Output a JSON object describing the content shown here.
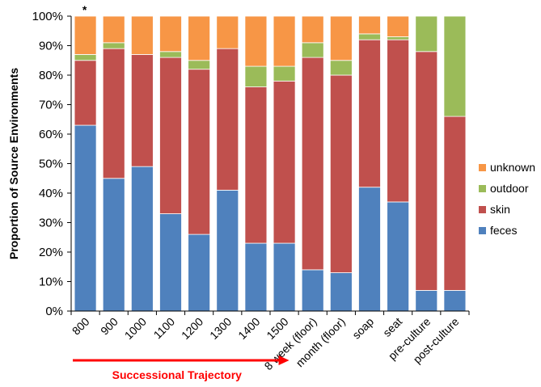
{
  "chart_data": {
    "type": "bar",
    "stacked": true,
    "ylabel": "Proportion of Source Environments",
    "ylim": [
      0,
      100
    ],
    "y_ticks": [
      "0%",
      "10%",
      "20%",
      "30%",
      "40%",
      "50%",
      "60%",
      "70%",
      "80%",
      "90%",
      "100%"
    ],
    "categories": [
      "800",
      "900",
      "1000",
      "1100",
      "1200",
      "1300",
      "1400",
      "1500",
      "8 week (floor)",
      "month (floor)",
      "soap",
      "seat",
      "pre-culture",
      "post-culture"
    ],
    "series": [
      {
        "name": "feces",
        "color": "#4f81bd",
        "values": [
          63,
          45,
          49,
          33,
          26,
          41,
          23,
          23,
          14,
          13,
          42,
          37,
          7,
          7
        ]
      },
      {
        "name": "skin",
        "color": "#c0504d",
        "values": [
          22,
          44,
          38,
          53,
          56,
          48,
          53,
          55,
          72,
          67,
          50,
          55,
          81,
          59
        ]
      },
      {
        "name": "outdoor",
        "color": "#9bbb59",
        "values": [
          2,
          2,
          0,
          2,
          3,
          0,
          7,
          5,
          5,
          5,
          2,
          1,
          12,
          34
        ]
      },
      {
        "name": "unknown",
        "color": "#f79646",
        "values": [
          13,
          9,
          13,
          12,
          15,
          11,
          17,
          17,
          9,
          15,
          6,
          7,
          0,
          0
        ]
      }
    ],
    "legend_order": [
      "unknown",
      "outdoor",
      "skin",
      "feces"
    ],
    "legend_position": "right",
    "grid": false,
    "annotations": [
      {
        "text": "*",
        "category": "800"
      },
      {
        "text": "Successional Trajectory",
        "color": "#ff0000",
        "arrow": true,
        "span_categories": [
          "800",
          "1500"
        ]
      }
    ]
  }
}
